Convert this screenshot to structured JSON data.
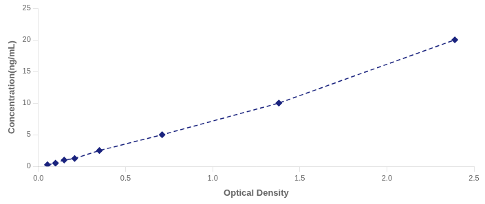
{
  "chart_data": {
    "type": "line",
    "x": [
      0.052,
      0.098,
      0.148,
      0.208,
      0.35,
      0.71,
      1.38,
      2.39
    ],
    "values": [
      0.25,
      0.5,
      1.0,
      1.25,
      2.5,
      5.0,
      10.0,
      20.0
    ],
    "color": "#1a237e",
    "marker": "diamond",
    "line_style": "dashed",
    "xlabel": "Optical Density",
    "ylabel": "Concentration(ng/mL)",
    "xlim": [
      0,
      2.5
    ],
    "ylim": [
      0,
      25
    ],
    "xticks": [
      {
        "value": 0,
        "label": "0.0"
      },
      0.5,
      {
        "value": 1,
        "label": "1.0"
      },
      1.5,
      {
        "value": 2,
        "label": "2.0"
      },
      2.5
    ],
    "yticks": [
      0,
      5,
      10,
      15,
      20,
      25
    ],
    "grid": false
  }
}
